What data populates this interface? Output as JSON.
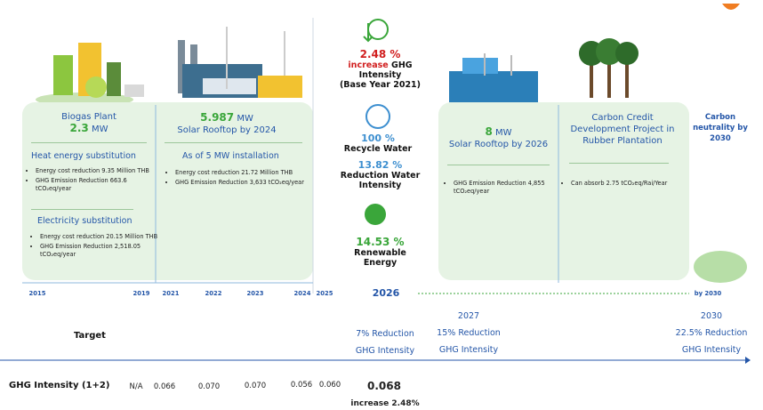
{
  "panels": [
    {
      "title": "Biogas Plant",
      "value": "2.3",
      "unit": "MW",
      "sections": [
        {
          "heading": "Heat energy substitution",
          "bullets": [
            "Energy cost reduction 9.35 Million THB",
            "GHG Emission Reduction 663.6 tCO₂eq/year"
          ]
        },
        {
          "heading": "Electricity substitution",
          "bullets": [
            "Energy cost reduction  20.15 Million THB",
            "GHG Emission Reduction 2,518.05 tCO₂eq/year"
          ]
        }
      ]
    },
    {
      "value": "5.987",
      "unit": "MW",
      "title": "Solar Rooftop by 2024",
      "sections": [
        {
          "heading": "As of 5 MW installation",
          "bullets": [
            "Energy cost reduction 21.72 Million THB",
            "GHG Emission Reduction 3,633 tCO₂eq/year"
          ]
        }
      ]
    },
    {
      "value": "8",
      "unit": "MW",
      "title": "Solar Rooftop by 2026",
      "sections": [
        {
          "bullets": [
            "GHG Emission Reduction 4,855 tCO₂eq/year"
          ]
        }
      ]
    },
    {
      "title": "Carbon Credit Development Project in Rubber Plantation",
      "sections": [
        {
          "bullets": [
            "Can absorb  2.75 tCO₂eq/Rai/Year"
          ]
        }
      ]
    }
  ],
  "goal": "Carbon neutrality by 2030",
  "metrics": [
    {
      "value": "2.48 %",
      "highlight": "increase",
      "label": "GHG Intensity",
      "note": "(Base Year 2021)"
    },
    {
      "value": "100 %",
      "label": "Recycle Water"
    },
    {
      "value": "13.82 %",
      "label": "Reduction Water Intensity"
    },
    {
      "value": "14.53 %",
      "label": "Renewable Energy"
    }
  ],
  "timeline": [
    "2015",
    "2019",
    "2021",
    "2022",
    "2023",
    "2024",
    "2025",
    "2026",
    "by 2030"
  ],
  "targets": {
    "label": "Target",
    "items": [
      {
        "text": "7% Reduction",
        "sub": "GHG Intensity"
      },
      {
        "year": "2027",
        "text": "15% Reduction",
        "sub": "GHG Intensity"
      },
      {
        "year": "2030",
        "text": "22.5% Reduction",
        "sub": "GHG Intensity"
      }
    ]
  },
  "ghg": {
    "label": "GHG Intensity (1+2)",
    "values": [
      "N/A",
      "0.066",
      "0.070",
      "0.070",
      "0.056",
      "0.060",
      "0.068"
    ],
    "note": "increase 2.48%"
  }
}
